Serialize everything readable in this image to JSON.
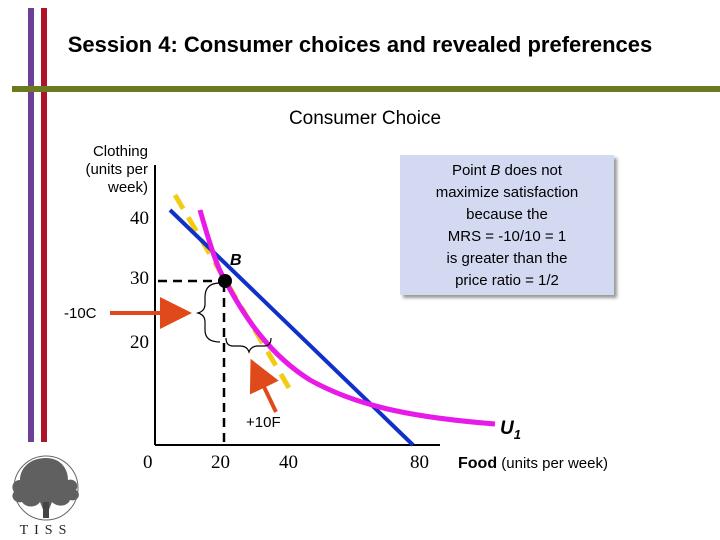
{
  "slide": {
    "title": "Session 4: Consumer choices and revealed preferences"
  },
  "chart": {
    "title": "Consumer Choice",
    "y_axis_label": "Clothing (units per week)",
    "x_axis_label_bold": "Food",
    "x_axis_label_rest": " (units per week)",
    "y_ticks": [
      "40",
      "30",
      "20"
    ],
    "x_ticks": [
      "0",
      "20",
      "40",
      "80"
    ],
    "point_label": "B",
    "indifference_curve_label": "U",
    "indifference_curve_sub": "1",
    "delta_clothing_label": "-10C",
    "delta_food_label": "+10F",
    "note_lines": [
      "Point B does not",
      "maximize satisfaction",
      "because the",
      "MRS = -10/10 = 1",
      "is greater than the",
      "price ratio = 1/2"
    ],
    "colors": {
      "budget_line": "#1030c8",
      "indifference_curve": "#e81ae8",
      "tangent_dashed": "#f2cc12",
      "arrows": "#e04a1a",
      "note_background": "#d4d9f2"
    }
  },
  "logo": {
    "text": "TISS"
  }
}
